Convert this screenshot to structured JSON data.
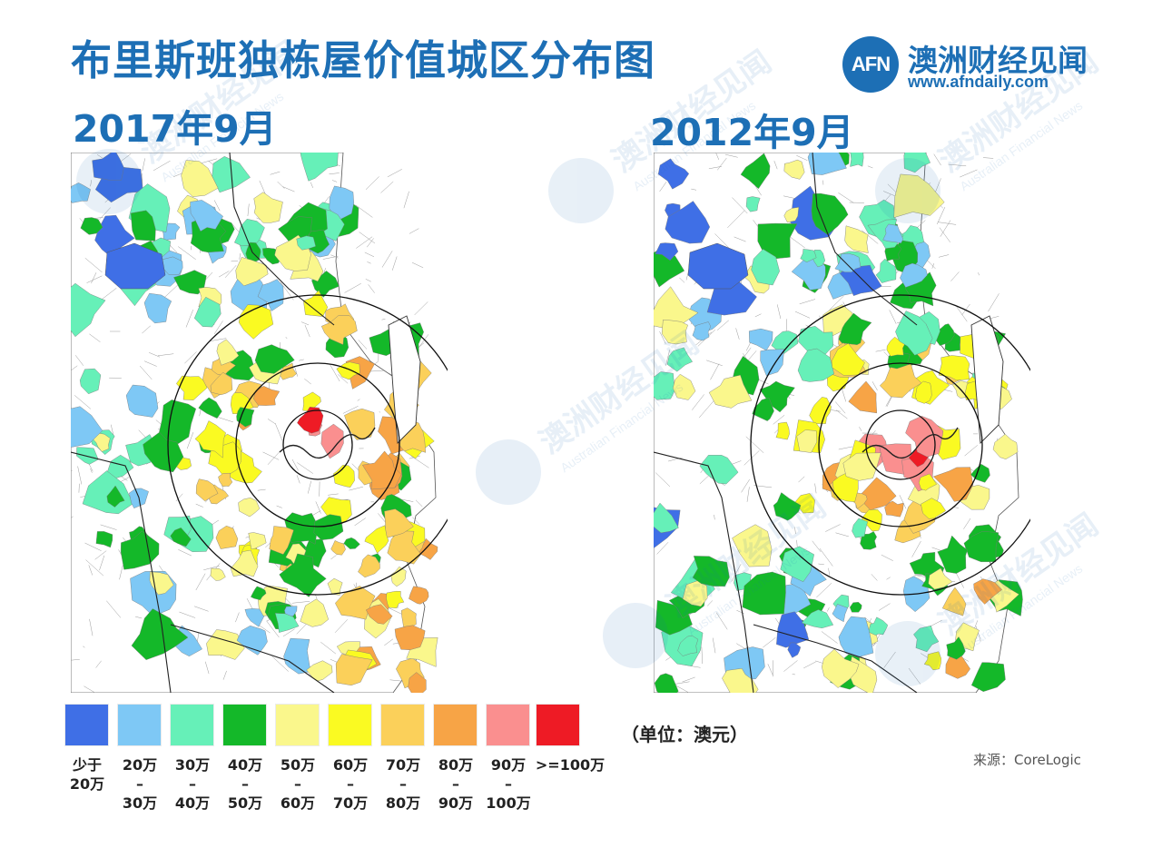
{
  "title": "布里斯班独栋屋价值城区分布图",
  "brand": {
    "logo_text": "AFN",
    "name": "澳洲财经见闻",
    "url": "www.afndaily.com",
    "color": "#1d6fb5"
  },
  "maps": {
    "left": {
      "label": "2017年9月"
    },
    "right": {
      "label": "2012年9月"
    }
  },
  "legend": {
    "items": [
      {
        "label": "少于\n20万",
        "color": "#3f6fe6"
      },
      {
        "label": "20万\n–\n30万",
        "color": "#7ec8f5"
      },
      {
        "label": "30万\n–\n40万",
        "color": "#66f0b8"
      },
      {
        "label": "40万\n–\n50万",
        "color": "#14b829"
      },
      {
        "label": "50万\n–\n60万",
        "color": "#faf78c"
      },
      {
        "label": "60万\n–\n70万",
        "color": "#fafa22"
      },
      {
        "label": "70万\n–\n80万",
        "color": "#fbd05a"
      },
      {
        "label": "80万\n–\n90万",
        "color": "#f7a446"
      },
      {
        "label": "90万\n–\n100万",
        "color": "#fa8f8f"
      },
      {
        "label": ">=100万",
        "color": "#ee1b25"
      }
    ],
    "unit": "（单位：澳元）"
  },
  "source": "来源：CoreLogic",
  "watermark": {
    "brand": "澳洲财经见闻",
    "sub": "Australian Financial News"
  }
}
